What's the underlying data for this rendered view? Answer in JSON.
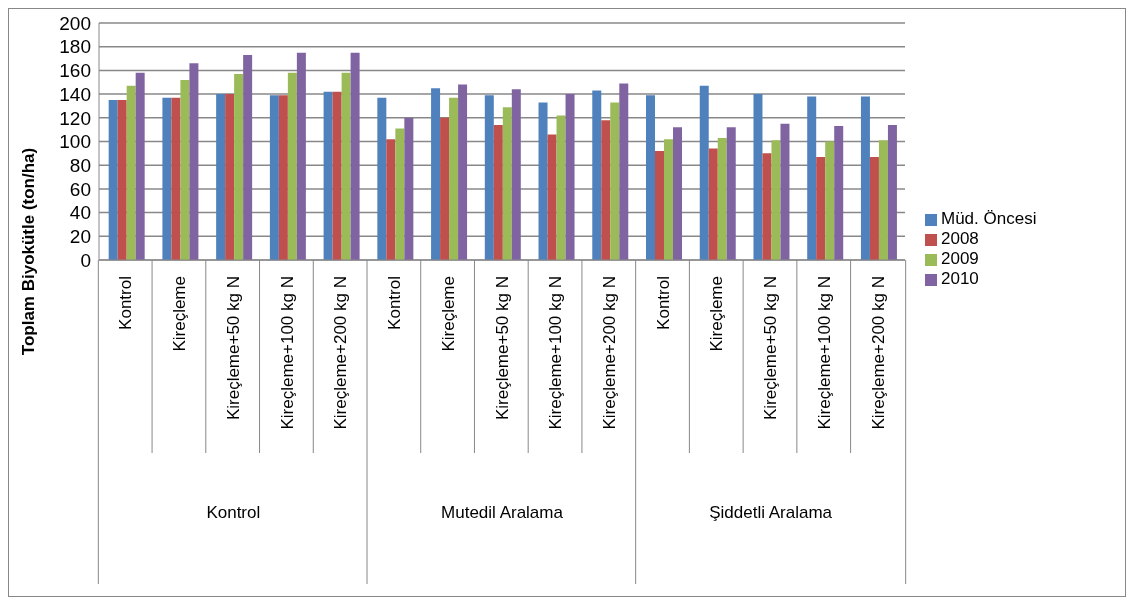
{
  "chart_data": {
    "type": "bar",
    "ylabel": "Toplam Biyokütle (ton/ha)",
    "categories": [
      "Kontrol",
      "Kireçleme",
      "Kireçleme+50 kg N",
      "Kireçleme+100 kg N",
      "Kireçleme+200 kg N",
      "Kontrol",
      "Kireçleme",
      "Kireçleme+50 kg N",
      "Kireçleme+100 kg N",
      "Kireçleme+200 kg N",
      "Kontrol",
      "Kireçleme",
      "Kireçleme+50 kg N",
      "Kireçleme+100 kg N",
      "Kireçleme+200 kg N"
    ],
    "annotations": [
      "Kontrol",
      "Mutedil Aralama",
      "Şiddetli Aralama"
    ],
    "series": [
      {
        "name": "Müd. Öncesi",
        "color": "#4f81bd",
        "values": [
          135,
          137,
          140,
          139,
          142,
          137,
          145,
          139,
          133,
          143,
          139,
          147,
          140,
          138,
          138
        ]
      },
      {
        "name": "2008",
        "color": "#c0504d",
        "values": [
          135,
          137,
          140,
          139,
          142,
          102,
          120,
          114,
          106,
          118,
          92,
          94,
          90,
          87,
          87
        ]
      },
      {
        "name": "2009",
        "color": "#9bbb59",
        "values": [
          147,
          152,
          157,
          158,
          158,
          111,
          137,
          129,
          122,
          133,
          102,
          103,
          101,
          100,
          101
        ]
      },
      {
        "name": "2010",
        "color": "#8064a2",
        "values": [
          158,
          166,
          173,
          175,
          175,
          120,
          148,
          144,
          140,
          149,
          112,
          112,
          115,
          113,
          114
        ]
      }
    ],
    "ylim": [
      0,
      200
    ],
    "yticks": [
      0,
      20,
      40,
      60,
      80,
      100,
      120,
      140,
      160,
      180,
      200
    ],
    "grid": "y",
    "legend": "right"
  }
}
